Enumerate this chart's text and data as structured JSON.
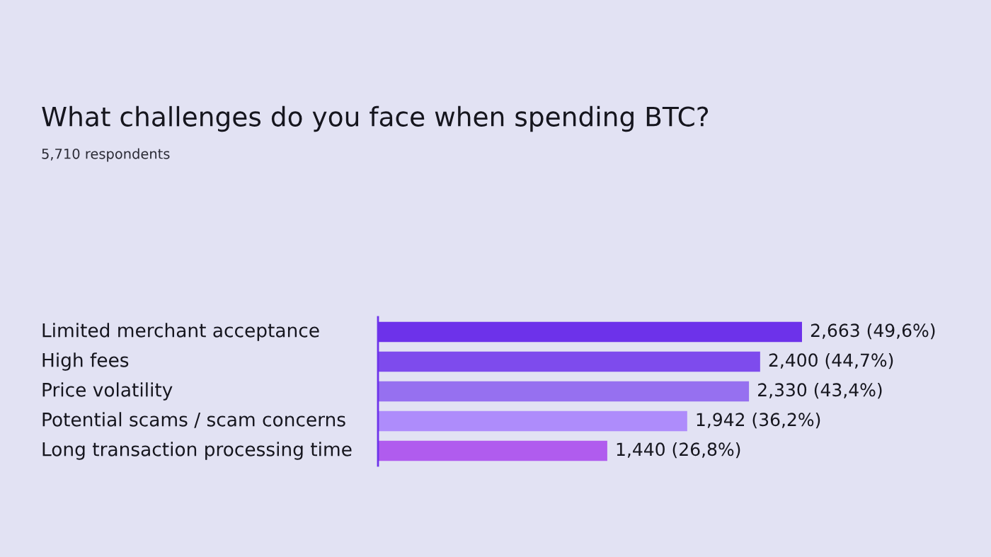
{
  "chart_data": {
    "type": "bar",
    "orientation": "horizontal",
    "title": "What challenges do you face when spending BTC?",
    "subtitle": "5,710 respondents",
    "categories": [
      "Limited merchant acceptance",
      "High fees",
      "Price volatility",
      "Potential scams / scam concerns",
      "Long transaction processing time"
    ],
    "values": [
      2663,
      2400,
      2330,
      1942,
      1440
    ],
    "colors": [
      "#6d32ea",
      "#7e4bed",
      "#9670f0",
      "#ae8cfb",
      "#b05cee"
    ],
    "value_labels": [
      "2,663 (49,6%)",
      "2,400 (44,7%)",
      "2,330 (43,4%)",
      "1,942 (36,2%)",
      "1,440 (26,8%)"
    ]
  }
}
